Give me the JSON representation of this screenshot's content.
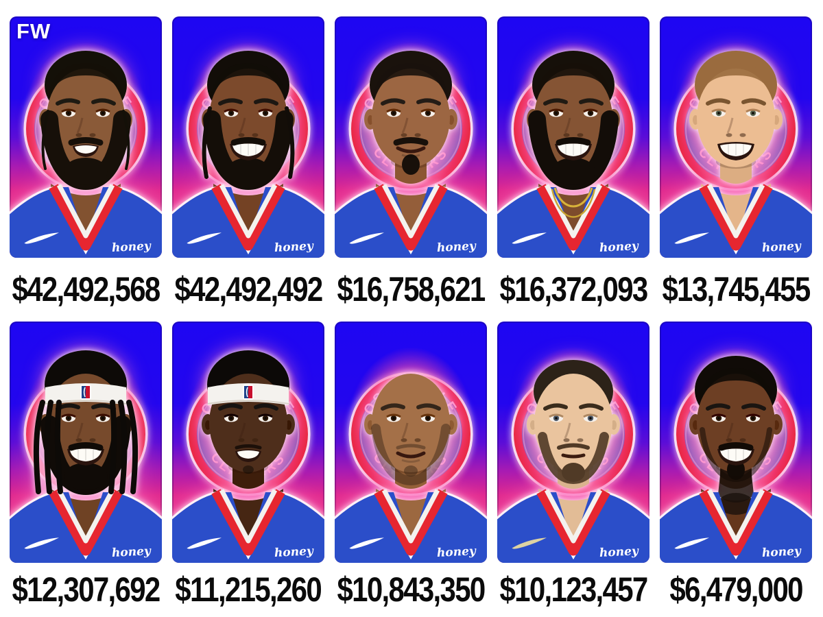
{
  "page": {
    "background": "#ffffff",
    "watermark": "FW"
  },
  "badge": {
    "text_top": "LOS ANGELES",
    "text_bottom": "CLIPPERS",
    "ring_color": "#e6232f",
    "inner_top": "#2a4fc0",
    "inner_bottom": "#3f86d8",
    "glow_ring": "#ffffff"
  },
  "brands": {
    "honey_label": "honey",
    "nike_swoosh_icon": "nike-swoosh",
    "nba_logo_icon": "nba-logo",
    "nba_blue": "#1d428a",
    "nba_red": "#c8102e"
  },
  "theme": {
    "card_blue_top": "#1e06f2",
    "card_pink_bottom": "#ee3a80",
    "jersey_blue": "#2b4ec9",
    "trim_red": "#e62630",
    "trim_white": "#f4f2ee",
    "salary_color": "#0b0b0b"
  },
  "players": [
    {
      "salary": "$42,492,568",
      "show_fw": true,
      "avatar": {
        "skin": "#8a5a38",
        "hair": "crescent",
        "hair_color": "#141008",
        "strands": "thin",
        "beard": "full",
        "beard_color": "#171009",
        "expression": "slight",
        "headband": false,
        "extras": []
      }
    },
    {
      "salary": "$42,492,492",
      "show_fw": false,
      "avatar": {
        "skin": "#7c4a2c",
        "hair": "crescent",
        "hair_color": "#120d08",
        "strands": "braids",
        "beard": "full",
        "beard_color": "#140e08",
        "expression": "grin",
        "headband": false,
        "extras": []
      }
    },
    {
      "salary": "$16,758,621",
      "show_fw": false,
      "avatar": {
        "skin": "#9c6642",
        "hair": "crescent",
        "hair_color": "#1a120c",
        "strands": "none",
        "beard": "stache-goatee",
        "beard_color": "#18100a",
        "expression": "smile",
        "headband": false,
        "extras": []
      }
    },
    {
      "salary": "$16,372,093",
      "show_fw": false,
      "avatar": {
        "skin": "#855434",
        "hair": "crescent",
        "hair_color": "#161009",
        "strands": "none",
        "beard": "full",
        "beard_color": "#130d08",
        "expression": "grin",
        "headband": false,
        "extras": [
          "chain"
        ]
      }
    },
    {
      "salary": "$13,745,455",
      "show_fw": false,
      "avatar": {
        "skin": "#ecbd92",
        "hair": "crescent",
        "hair_color": "#9a6b3e",
        "strands": "none",
        "beard": "none",
        "beard_color": "#8a6238",
        "expression": "grin",
        "headband": false,
        "extras": [],
        "brow_color": "#7a5530",
        "iris": "#56624e"
      }
    },
    {
      "salary": "$12,307,692",
      "show_fw": false,
      "avatar": {
        "skin": "#774a2c",
        "hair": "crescent",
        "hair_color": "#0d0a07",
        "strands": "dreads",
        "beard": "full",
        "beard_color": "#100b07",
        "expression": "grin",
        "headband": true,
        "extras": []
      }
    },
    {
      "salary": "$11,215,260",
      "show_fw": false,
      "avatar": {
        "skin": "#4e2e1b",
        "hair": "crescent",
        "hair_color": "#0c0907",
        "strands": "none",
        "beard": "thin",
        "beard_color": "#0c0704",
        "expression": "slight",
        "headband": true,
        "extras": []
      }
    },
    {
      "salary": "$10,843,350",
      "show_fw": false,
      "avatar": {
        "skin": "#a47048",
        "hair": "none",
        "hair_color": "#2a1c10",
        "strands": "none",
        "beard": "stubble",
        "beard_color": "#23160c",
        "expression": "smile",
        "headband": false,
        "extras": []
      }
    },
    {
      "salary": "$10,123,457",
      "show_fw": false,
      "avatar": {
        "skin": "#eac49e",
        "hair": "buzz",
        "hair_color": "#2c2218",
        "strands": "none",
        "beard": "chin",
        "beard_color": "#503a26",
        "expression": "neutral",
        "headband": false,
        "extras": [],
        "brow_color": "#3a2c1c",
        "iris": "#4c5868",
        "swoosh_color": "#ddd2a2"
      }
    },
    {
      "salary": "$6,479,000",
      "show_fw": false,
      "avatar": {
        "skin": "#6d3f24",
        "hair": "crescent",
        "hair_color": "#100b07",
        "strands": "none",
        "beard": "stache-goatee",
        "beard_color": "#120b06",
        "jawline": true,
        "expression": "grin",
        "headband": false,
        "extras": [
          "neck-tattoo"
        ]
      }
    }
  ]
}
